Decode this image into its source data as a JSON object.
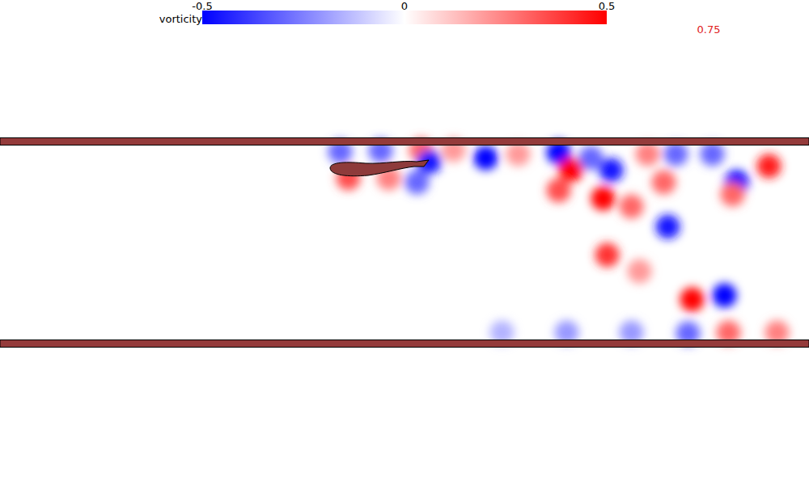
{
  "chart_data": {
    "type": "field",
    "colorbar": {
      "label": "vorticity",
      "range": [
        -0.5,
        0.5
      ],
      "ticks": [
        -0.5,
        0,
        0.5
      ]
    },
    "annotations": [
      "0.75"
    ],
    "tick_labels": false,
    "xlim": [
      0,
      10
    ],
    "ylim": [
      -3,
      3
    ],
    "walls": [
      1.25,
      -1.25
    ],
    "vortices": [
      {
        "x": 4.2,
        "y": 1.13,
        "value": -0.3
      },
      {
        "x": 4.7,
        "y": 1.14,
        "value": -0.3
      },
      {
        "x": 5.2,
        "y": 1.15,
        "value": 0.3
      },
      {
        "x": 5.3,
        "y": 1.0,
        "value": -0.45
      },
      {
        "x": 5.6,
        "y": 1.15,
        "value": 0.2
      },
      {
        "x": 6.0,
        "y": 1.05,
        "value": -0.5
      },
      {
        "x": 6.4,
        "y": 1.1,
        "value": 0.2
      },
      {
        "x": 6.9,
        "y": 1.12,
        "value": -0.5
      },
      {
        "x": 7.05,
        "y": 0.9,
        "value": 0.5
      },
      {
        "x": 6.9,
        "y": 0.65,
        "value": 0.35
      },
      {
        "x": 7.45,
        "y": 0.55,
        "value": 0.5
      },
      {
        "x": 7.55,
        "y": 0.9,
        "value": -0.45
      },
      {
        "x": 7.3,
        "y": 1.05,
        "value": -0.3
      },
      {
        "x": 8.0,
        "y": 1.1,
        "value": 0.25
      },
      {
        "x": 8.2,
        "y": 0.75,
        "value": 0.3
      },
      {
        "x": 8.35,
        "y": 1.1,
        "value": -0.3
      },
      {
        "x": 8.8,
        "y": 1.1,
        "value": -0.3
      },
      {
        "x": 9.1,
        "y": 0.75,
        "value": -0.5
      },
      {
        "x": 9.5,
        "y": 0.95,
        "value": 0.45
      },
      {
        "x": 9.05,
        "y": 0.6,
        "value": 0.3
      },
      {
        "x": 8.25,
        "y": 0.2,
        "value": -0.45
      },
      {
        "x": 7.5,
        "y": -0.15,
        "value": 0.4
      },
      {
        "x": 7.9,
        "y": -0.35,
        "value": 0.2
      },
      {
        "x": 8.55,
        "y": -0.7,
        "value": 0.5
      },
      {
        "x": 8.95,
        "y": -0.65,
        "value": -0.5
      },
      {
        "x": 4.3,
        "y": 0.8,
        "value": 0.35
      },
      {
        "x": 4.8,
        "y": 0.8,
        "value": 0.25
      },
      {
        "x": 5.15,
        "y": 0.75,
        "value": -0.3
      },
      {
        "x": 7.8,
        "y": 0.45,
        "value": 0.3
      },
      {
        "x": 6.2,
        "y": -1.11,
        "value": -0.15
      },
      {
        "x": 7.0,
        "y": -1.11,
        "value": -0.2
      },
      {
        "x": 7.8,
        "y": -1.11,
        "value": -0.2
      },
      {
        "x": 8.5,
        "y": -1.12,
        "value": -0.3
      },
      {
        "x": 9.0,
        "y": -1.11,
        "value": 0.3
      },
      {
        "x": 9.6,
        "y": -1.11,
        "value": 0.25
      }
    ]
  }
}
